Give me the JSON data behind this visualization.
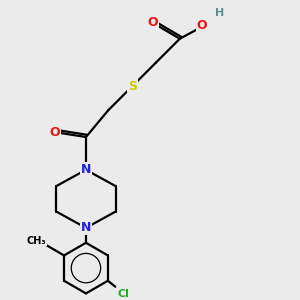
{
  "bg_color": "#ebebeb",
  "atom_colors": {
    "C": "#000000",
    "H": "#5a9090",
    "O": "#ee1111",
    "N": "#2222dd",
    "S": "#cccc00",
    "Cl": "#22aa22"
  },
  "bond_lw": 1.6,
  "figsize": [
    3.0,
    3.0
  ],
  "dpi": 100,
  "xlim": [
    0,
    10
  ],
  "ylim": [
    0,
    10
  ]
}
